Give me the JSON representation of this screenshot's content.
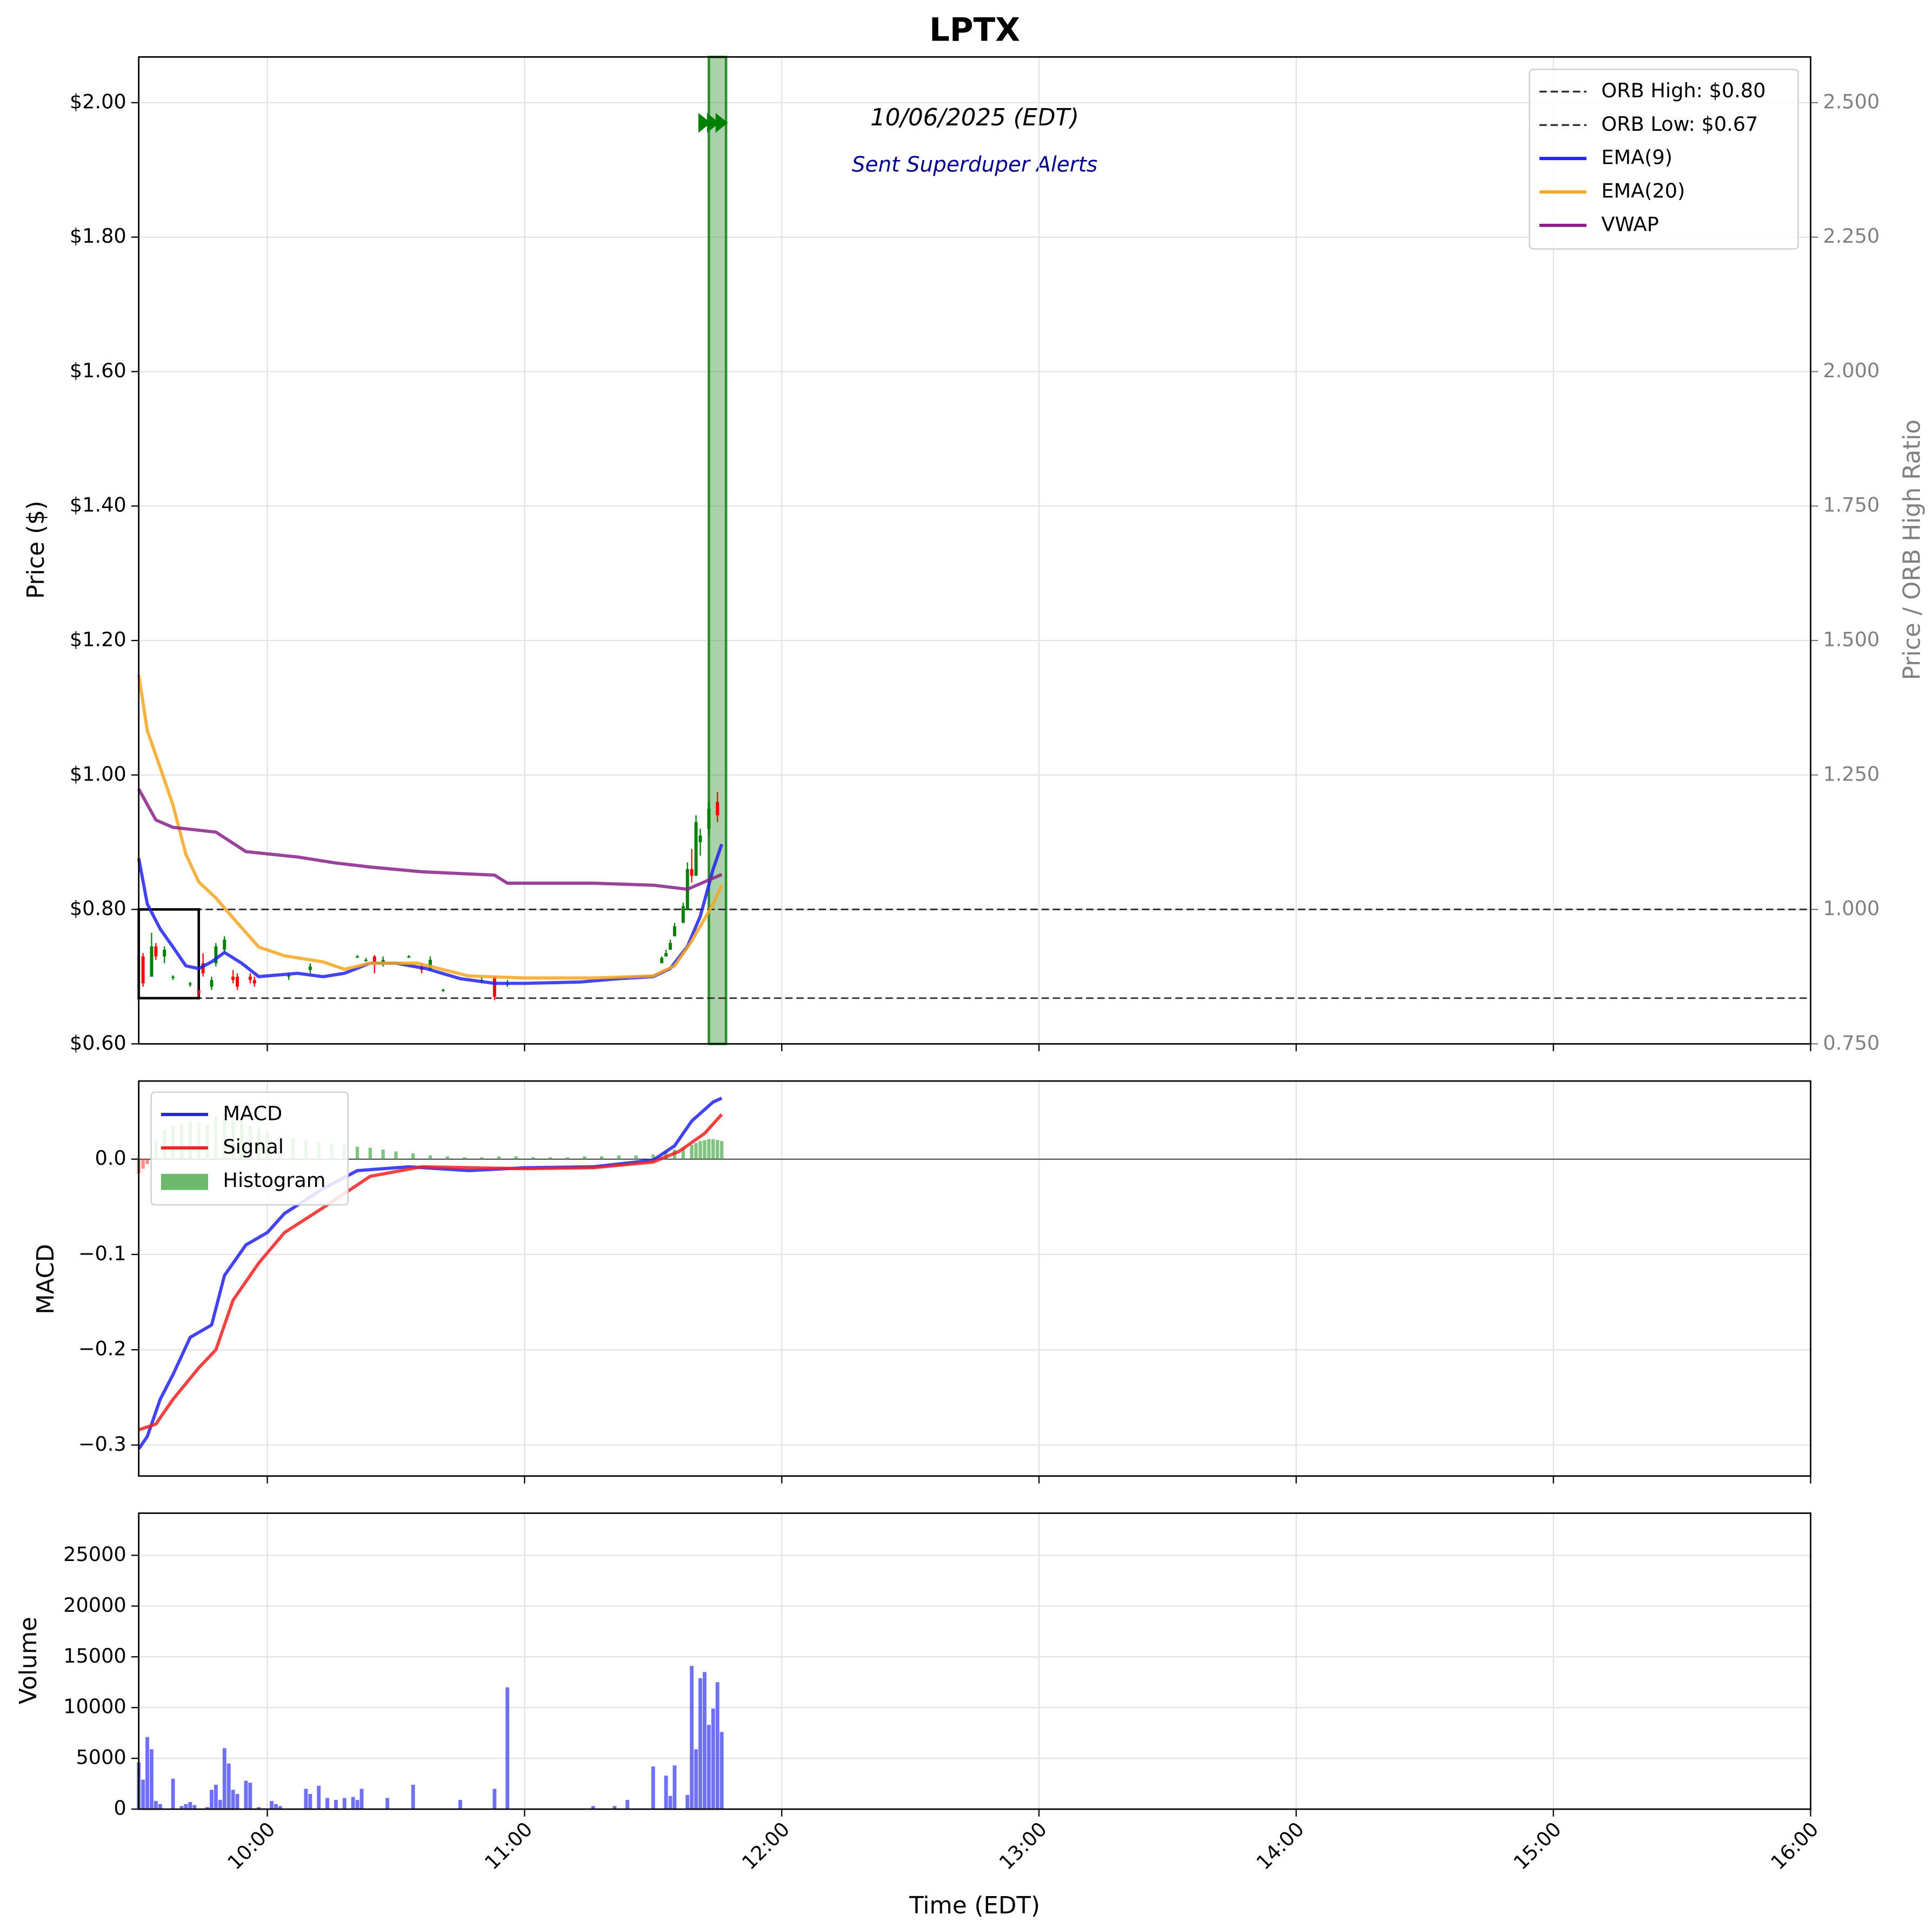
{
  "chart_data": [
    {
      "type": "candlestick",
      "title": "LPTX",
      "annotations": [
        "10/06/2025 (EDT)",
        "Sent Superduper Alerts"
      ],
      "ylabel": "Price ($)",
      "y2label": "Price / ORB High Ratio",
      "xlim": [
        570,
        960
      ],
      "xticks": [
        {
          "value": 600,
          "label": "10:00"
        },
        {
          "value": 660,
          "label": "11:00"
        },
        {
          "value": 720,
          "label": "12:00"
        },
        {
          "value": 780,
          "label": "13:00"
        },
        {
          "value": 840,
          "label": "14:00"
        },
        {
          "value": 900,
          "label": "15:00"
        },
        {
          "value": 960,
          "label": "16:00"
        }
      ],
      "ylim": [
        0.6,
        2.068
      ],
      "yticks": [
        {
          "value": 0.6,
          "label": "$0.60"
        },
        {
          "value": 0.8,
          "label": "$0.80"
        },
        {
          "value": 1.0,
          "label": "$1.00"
        },
        {
          "value": 1.2,
          "label": "$1.20"
        },
        {
          "value": 1.4,
          "label": "$1.40"
        },
        {
          "value": 1.6,
          "label": "$1.60"
        },
        {
          "value": 1.8,
          "label": "$1.80"
        },
        {
          "value": 2.0,
          "label": "$2.00"
        }
      ],
      "y2lim": [
        0.75,
        2.585
      ],
      "y2ticks": [
        {
          "value": 0.75,
          "label": "0.750"
        },
        {
          "value": 1.0,
          "label": "1.000"
        },
        {
          "value": 1.25,
          "label": "1.250"
        },
        {
          "value": 1.5,
          "label": "1.500"
        },
        {
          "value": 1.75,
          "label": "1.750"
        },
        {
          "value": 2.0,
          "label": "2.000"
        },
        {
          "value": 2.25,
          "label": "2.250"
        },
        {
          "value": 2.5,
          "label": "2.500"
        }
      ],
      "grid": true,
      "legend": "upper right",
      "up_color": "#008000",
      "down_color": "#ff0000",
      "orb_window_end": 584,
      "alert_span": [
        703,
        707
      ],
      "alert_color": "#2e8b2e",
      "alerts": {
        "x": [
          702,
          704,
          706
        ],
        "y": 1.97
      },
      "series": [
        {
          "name": "ORB High: $0.80",
          "color": "#333333",
          "dashed": true,
          "value": 0.8
        },
        {
          "name": "ORB Low: $0.67",
          "color": "#333333",
          "dashed": true,
          "value": 0.668
        },
        {
          "name": "EMA(9)",
          "color": "#2222ee",
          "x": [
            570,
            572,
            575,
            578,
            581,
            584,
            587,
            590,
            594,
            598,
            607,
            613,
            618,
            624,
            630,
            637,
            645,
            653,
            660,
            673,
            682,
            690,
            694,
            698,
            701,
            704,
            706
          ],
          "values": [
            0.876,
            0.808,
            0.771,
            0.744,
            0.716,
            0.712,
            0.722,
            0.736,
            0.72,
            0.7,
            0.705,
            0.7,
            0.705,
            0.72,
            0.72,
            0.712,
            0.697,
            0.69,
            0.69,
            0.692,
            0.697,
            0.7,
            0.712,
            0.745,
            0.79,
            0.86,
            0.897
          ]
        },
        {
          "name": "EMA(20)",
          "color": "#f5a623",
          "x": [
            570,
            572,
            575,
            578,
            581,
            584,
            588,
            593,
            598,
            604,
            613,
            618,
            624,
            635,
            647,
            660,
            676,
            690,
            695,
            699,
            704,
            706
          ],
          "values": [
            1.149,
            1.066,
            1.011,
            0.955,
            0.882,
            0.841,
            0.817,
            0.78,
            0.744,
            0.731,
            0.722,
            0.711,
            0.72,
            0.72,
            0.701,
            0.698,
            0.698,
            0.701,
            0.716,
            0.753,
            0.808,
            0.836
          ]
        },
        {
          "name": "VWAP",
          "color": "#882288",
          "x": [
            570,
            574,
            578,
            588,
            595,
            607,
            616,
            624,
            636,
            653,
            656,
            676,
            690,
            698,
            702,
            706
          ],
          "values": [
            0.979,
            0.933,
            0.922,
            0.915,
            0.886,
            0.878,
            0.869,
            0.863,
            0.856,
            0.851,
            0.839,
            0.839,
            0.836,
            0.83,
            0.841,
            0.852
          ]
        }
      ],
      "candles": [
        {
          "x": 571,
          "open": 0.73,
          "high": 0.735,
          "low": 0.685,
          "close": 0.69
        },
        {
          "x": 573,
          "open": 0.7,
          "high": 0.765,
          "low": 0.7,
          "close": 0.745
        },
        {
          "x": 574,
          "open": 0.745,
          "high": 0.75,
          "low": 0.725,
          "close": 0.73
        },
        {
          "x": 576,
          "open": 0.73,
          "high": 0.745,
          "low": 0.72,
          "close": 0.74
        },
        {
          "x": 578,
          "open": 0.7,
          "high": 0.702,
          "low": 0.695,
          "close": 0.7
        },
        {
          "x": 582,
          "open": 0.69,
          "high": 0.692,
          "low": 0.685,
          "close": 0.69
        },
        {
          "x": 584,
          "open": 0.68,
          "high": 0.68,
          "low": 0.67,
          "close": 0.675
        },
        {
          "x": 585,
          "open": 0.72,
          "high": 0.735,
          "low": 0.7,
          "close": 0.705
        },
        {
          "x": 587,
          "open": 0.685,
          "high": 0.7,
          "low": 0.68,
          "close": 0.695
        },
        {
          "x": 588,
          "open": 0.72,
          "high": 0.75,
          "low": 0.715,
          "close": 0.745
        },
        {
          "x": 590,
          "open": 0.74,
          "high": 0.76,
          "low": 0.735,
          "close": 0.755
        },
        {
          "x": 592,
          "open": 0.7,
          "high": 0.71,
          "low": 0.69,
          "close": 0.695
        },
        {
          "x": 593,
          "open": 0.7,
          "high": 0.705,
          "low": 0.68,
          "close": 0.685
        },
        {
          "x": 596,
          "open": 0.7,
          "high": 0.705,
          "low": 0.69,
          "close": 0.695
        },
        {
          "x": 597,
          "open": 0.695,
          "high": 0.7,
          "low": 0.685,
          "close": 0.69
        },
        {
          "x": 605,
          "open": 0.7,
          "high": 0.705,
          "low": 0.695,
          "close": 0.702
        },
        {
          "x": 610,
          "open": 0.71,
          "high": 0.72,
          "low": 0.705,
          "close": 0.715
        },
        {
          "x": 621,
          "open": 0.73,
          "high": 0.732,
          "low": 0.728,
          "close": 0.73
        },
        {
          "x": 623,
          "open": 0.725,
          "high": 0.728,
          "low": 0.722,
          "close": 0.725
        },
        {
          "x": 625,
          "open": 0.73,
          "high": 0.732,
          "low": 0.705,
          "close": 0.72
        },
        {
          "x": 627,
          "open": 0.72,
          "high": 0.73,
          "low": 0.715,
          "close": 0.725
        },
        {
          "x": 633,
          "open": 0.73,
          "high": 0.732,
          "low": 0.728,
          "close": 0.73
        },
        {
          "x": 636,
          "open": 0.715,
          "high": 0.72,
          "low": 0.705,
          "close": 0.71
        },
        {
          "x": 638,
          "open": 0.71,
          "high": 0.73,
          "low": 0.71,
          "close": 0.725
        },
        {
          "x": 641,
          "open": 0.68,
          "high": 0.682,
          "low": 0.678,
          "close": 0.68
        },
        {
          "x": 650,
          "open": 0.695,
          "high": 0.7,
          "low": 0.69,
          "close": 0.695
        },
        {
          "x": 653,
          "open": 0.7,
          "high": 0.7,
          "low": 0.665,
          "close": 0.67
        },
        {
          "x": 656,
          "open": 0.69,
          "high": 0.695,
          "low": 0.685,
          "close": 0.69
        },
        {
          "x": 692,
          "open": 0.72,
          "high": 0.73,
          "low": 0.72,
          "close": 0.728
        },
        {
          "x": 693,
          "open": 0.73,
          "high": 0.74,
          "low": 0.73,
          "close": 0.735
        },
        {
          "x": 694,
          "open": 0.74,
          "high": 0.755,
          "low": 0.74,
          "close": 0.75
        },
        {
          "x": 695,
          "open": 0.76,
          "high": 0.78,
          "low": 0.76,
          "close": 0.775
        },
        {
          "x": 697,
          "open": 0.78,
          "high": 0.81,
          "low": 0.78,
          "close": 0.805
        },
        {
          "x": 698,
          "open": 0.8,
          "high": 0.87,
          "low": 0.8,
          "close": 0.86
        },
        {
          "x": 699,
          "open": 0.86,
          "high": 0.89,
          "low": 0.84,
          "close": 0.85
        },
        {
          "x": 700,
          "open": 0.85,
          "high": 0.94,
          "low": 0.85,
          "close": 0.93
        },
        {
          "x": 701,
          "open": 0.9,
          "high": 0.92,
          "low": 0.88,
          "close": 0.91
        },
        {
          "x": 703,
          "open": 0.92,
          "high": 0.96,
          "low": 0.91,
          "close": 0.95
        },
        {
          "x": 705,
          "open": 0.96,
          "high": 0.975,
          "low": 0.93,
          "close": 0.94
        }
      ]
    },
    {
      "type": "macd",
      "ylabel": "MACD",
      "legend": "upper left",
      "xlim": [
        570,
        960
      ],
      "xticks": [
        {
          "value": 600,
          "label": "10:00"
        },
        {
          "value": 660,
          "label": "11:00"
        },
        {
          "value": 720,
          "label": "12:00"
        },
        {
          "value": 780,
          "label": "13:00"
        },
        {
          "value": 840,
          "label": "14:00"
        },
        {
          "value": 900,
          "label": "15:00"
        },
        {
          "value": 960,
          "label": "16:00"
        }
      ],
      "ylim": [
        -0.3325,
        0.082
      ],
      "yticks": [
        {
          "value": -0.3,
          "label": "−0.3"
        },
        {
          "value": -0.2,
          "label": "−0.2"
        },
        {
          "value": -0.1,
          "label": "−0.1"
        },
        {
          "value": 0.0,
          "label": "0.0"
        }
      ],
      "grid": true,
      "series": [
        {
          "name": "MACD",
          "color": "#2222ee",
          "x": [
            570,
            572,
            575,
            578,
            582,
            587,
            590,
            595,
            600,
            604,
            613,
            621,
            633,
            647,
            660,
            676,
            690,
            695,
            699,
            704,
            706
          ],
          "values": [
            -0.304,
            -0.291,
            -0.252,
            -0.226,
            -0.187,
            -0.174,
            -0.122,
            -0.09,
            -0.077,
            -0.057,
            -0.031,
            -0.012,
            -0.008,
            -0.012,
            -0.009,
            -0.008,
            -0.001,
            0.014,
            0.04,
            0.06,
            0.064
          ]
        },
        {
          "name": "Signal",
          "color": "#ee2222",
          "x": [
            570,
            574,
            578,
            584,
            588,
            592,
            598,
            604,
            613,
            624,
            636,
            660,
            676,
            690,
            696,
            702,
            706
          ],
          "values": [
            -0.284,
            -0.278,
            -0.252,
            -0.219,
            -0.2,
            -0.148,
            -0.109,
            -0.077,
            -0.051,
            -0.018,
            -0.008,
            -0.01,
            -0.009,
            -0.003,
            0.008,
            0.027,
            0.047
          ]
        },
        {
          "name": "Histogram",
          "color": "#2e9b2e",
          "neg_color": "#ff4444",
          "kind": "bar",
          "x": [
            570,
            571,
            572,
            574,
            576,
            578,
            580,
            582,
            584,
            586,
            588,
            590,
            592,
            594,
            596,
            598,
            600,
            603,
            606,
            609,
            612,
            615,
            618,
            621,
            624,
            627,
            630,
            634,
            638,
            642,
            646,
            650,
            654,
            658,
            662,
            666,
            670,
            674,
            678,
            682,
            686,
            690,
            693,
            695,
            697,
            699,
            700,
            701,
            702,
            703,
            704,
            705,
            706
          ],
          "values": [
            -0.015,
            -0.01,
            -0.005,
            0.02,
            0.03,
            0.035,
            0.037,
            0.04,
            0.038,
            0.036,
            0.045,
            0.047,
            0.043,
            0.04,
            0.035,
            0.032,
            0.028,
            0.025,
            0.022,
            0.02,
            0.018,
            0.016,
            0.015,
            0.013,
            0.012,
            0.01,
            0.008,
            0.006,
            0.004,
            0.003,
            0.002,
            0.002,
            0.003,
            0.003,
            0.002,
            0.002,
            0.002,
            0.003,
            0.003,
            0.004,
            0.004,
            0.005,
            0.008,
            0.01,
            0.012,
            0.015,
            0.017,
            0.019,
            0.02,
            0.021,
            0.021,
            0.02,
            0.019
          ]
        }
      ]
    },
    {
      "type": "bar",
      "ylabel": "Volume",
      "xlabel": "Time (EDT)",
      "color": "#3333ee",
      "xlim": [
        570,
        960
      ],
      "xticks": [
        {
          "value": 600,
          "label": "10:00"
        },
        {
          "value": 660,
          "label": "11:00"
        },
        {
          "value": 720,
          "label": "12:00"
        },
        {
          "value": 780,
          "label": "13:00"
        },
        {
          "value": 840,
          "label": "14:00"
        },
        {
          "value": 900,
          "label": "15:00"
        },
        {
          "value": 960,
          "label": "16:00"
        }
      ],
      "ylim": [
        0,
        29150
      ],
      "yticks": [
        0,
        5000,
        10000,
        15000,
        20000,
        25000
      ],
      "grid": true,
      "x": [
        570,
        571,
        572,
        573,
        574,
        575,
        578,
        580,
        581,
        582,
        583,
        586,
        587,
        588,
        589,
        590,
        591,
        592,
        593,
        595,
        596,
        598,
        601,
        602,
        603,
        609,
        610,
        612,
        614,
        616,
        618,
        620,
        621,
        622,
        628,
        634,
        645,
        653,
        656,
        676,
        681,
        684,
        690,
        693,
        694,
        695,
        698,
        699,
        700,
        701,
        702,
        703,
        704,
        705,
        706
      ],
      "values": [
        4600,
        2900,
        7100,
        5900,
        800,
        500,
        3000,
        300,
        500,
        700,
        400,
        200,
        1900,
        2400,
        900,
        6000,
        4500,
        1900,
        1500,
        2800,
        2600,
        200,
        800,
        500,
        300,
        2000,
        1500,
        2300,
        1100,
        900,
        1100,
        1200,
        900,
        2000,
        1100,
        2400,
        900,
        2000,
        12000,
        300,
        300,
        900,
        4200,
        3300,
        1300,
        4300,
        1400,
        14100,
        5900,
        12900,
        13500,
        8300,
        9900,
        12500,
        7600
      ]
    }
  ]
}
